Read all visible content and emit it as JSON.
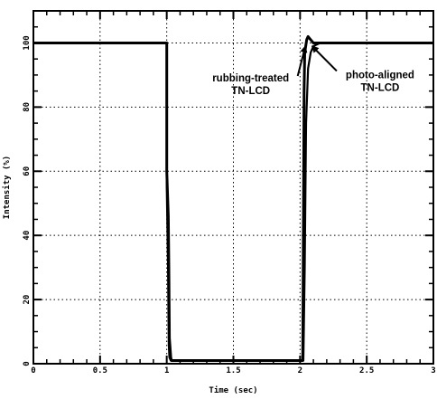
{
  "chart_data": {
    "type": "line",
    "xlabel": "Time (sec)",
    "ylabel": "Intensity (%)",
    "xlim": [
      0,
      3
    ],
    "ylim": [
      0,
      110
    ],
    "x_ticks": [
      0,
      0.5,
      1,
      1.5,
      2,
      2.5,
      3
    ],
    "x_tick_labels": [
      "0",
      "0.5",
      "1",
      "1.5",
      "2",
      "2.5",
      "3"
    ],
    "y_ticks": [
      0,
      20,
      40,
      60,
      80,
      100
    ],
    "y_tick_labels": [
      "0",
      "20",
      "40",
      "60",
      "80",
      "100"
    ],
    "grid": "dotted",
    "series": [
      {
        "name": "rubbing-treated TN-LCD",
        "x": [
          0,
          1.0,
          1.0,
          1.012,
          1.016,
          1.02,
          1.03,
          1.035,
          2.0,
          2.02,
          2.025,
          2.03,
          2.035,
          2.05,
          2.06,
          2.08,
          2.1,
          3.0
        ],
        "y": [
          100,
          100,
          60,
          46,
          30,
          8,
          2,
          1,
          1,
          1,
          40,
          85,
          97,
          101,
          102,
          101,
          100,
          100
        ]
      },
      {
        "name": "photo-aligned TN-LCD",
        "x": [
          0,
          1.0,
          1.0,
          1.01,
          1.015,
          1.02,
          1.03,
          1.04,
          2.0,
          2.025,
          2.035,
          2.045,
          2.06,
          2.08,
          2.1,
          2.15,
          2.2,
          3.0
        ],
        "y": [
          100,
          100,
          55,
          30,
          6,
          2,
          1,
          1,
          1,
          1,
          30,
          75,
          92,
          97,
          99,
          100,
          100,
          100
        ]
      }
    ],
    "annotations": [
      {
        "lines": [
          "rubbing-treated",
          "TN-LCD"
        ],
        "x": 1.63,
        "y": 88,
        "arrow_to_x": 2.04,
        "arrow_to_y": 99
      },
      {
        "lines": [
          "photo-aligned",
          "TN-LCD"
        ],
        "x": 2.6,
        "y": 89,
        "arrow_to_x": 2.09,
        "arrow_to_y": 99
      }
    ]
  }
}
